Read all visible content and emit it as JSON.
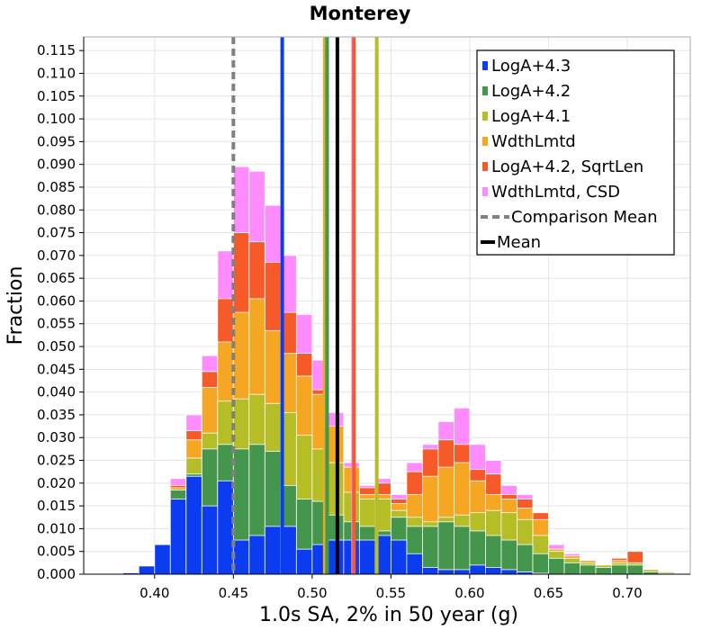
{
  "chart_data": {
    "type": "bar",
    "title": "Monterey",
    "xlabel": "1.0s SA, 2% in 50 year (g)",
    "ylabel": "Fraction",
    "xlim": [
      0.355,
      0.74
    ],
    "ylim": [
      0,
      0.118
    ],
    "bin_width": 0.01,
    "x_ticks": [
      "0.40",
      "0.45",
      "0.50",
      "0.55",
      "0.60",
      "0.65",
      "0.70"
    ],
    "x_tick_values": [
      0.4,
      0.45,
      0.5,
      0.55,
      0.6,
      0.65,
      0.7
    ],
    "y_ticks": [
      "0.000",
      "0.005",
      "0.010",
      "0.015",
      "0.020",
      "0.025",
      "0.030",
      "0.035",
      "0.040",
      "0.045",
      "0.050",
      "0.055",
      "0.060",
      "0.065",
      "0.070",
      "0.075",
      "0.080",
      "0.085",
      "0.090",
      "0.095",
      "0.100",
      "0.105",
      "0.110",
      "0.115"
    ],
    "y_tick_values": [
      0,
      0.005,
      0.01,
      0.015,
      0.02,
      0.025,
      0.03,
      0.035,
      0.04,
      0.045,
      0.05,
      0.055,
      0.06,
      0.065,
      0.07,
      0.075,
      0.08,
      0.085,
      0.09,
      0.095,
      0.1,
      0.105,
      0.11,
      0.115
    ],
    "grid": true,
    "legend_position": "top-right",
    "bin_centers": [
      0.375,
      0.385,
      0.395,
      0.405,
      0.415,
      0.425,
      0.435,
      0.445,
      0.455,
      0.465,
      0.475,
      0.485,
      0.495,
      0.505,
      0.515,
      0.525,
      0.535,
      0.545,
      0.555,
      0.565,
      0.575,
      0.585,
      0.595,
      0.605,
      0.615,
      0.625,
      0.635,
      0.645,
      0.655,
      0.665,
      0.675,
      0.685,
      0.695,
      0.705,
      0.715,
      0.725
    ],
    "series": [
      {
        "name": "WdthLmtd, CSD",
        "color": "#ff8cff",
        "values": [
          0,
          0,
          0.0005,
          0.006,
          0.021,
          0.035,
          0.048,
          0.071,
          0.0895,
          0.0885,
          0.081,
          0.07,
          0.057,
          0.047,
          0.0355,
          0.0245,
          0.0195,
          0.021,
          0.0175,
          0.0245,
          0.0285,
          0.0335,
          0.0365,
          0.0285,
          0.025,
          0.0195,
          0.0175,
          0.0135,
          0.0065,
          0.0045,
          0.003,
          0.002,
          0.0025,
          0.002,
          0.001,
          0.0005
        ]
      },
      {
        "name": "LogA+4.2, SqrtLen",
        "color": "#f55a28",
        "values": [
          0,
          0,
          0.0005,
          0.006,
          0.0195,
          0.0315,
          0.0445,
          0.0605,
          0.075,
          0.073,
          0.0685,
          0.0575,
          0.0485,
          0.0405,
          0.0295,
          0.0235,
          0.019,
          0.02,
          0.0165,
          0.0225,
          0.0275,
          0.0295,
          0.0285,
          0.023,
          0.022,
          0.0175,
          0.0165,
          0.0135,
          0.0055,
          0.004,
          0.003,
          0.002,
          0.0035,
          0.005,
          0.001,
          0.0005
        ]
      },
      {
        "name": "WdthLmtd",
        "color": "#f5a623",
        "values": [
          0,
          0,
          0.0005,
          0.006,
          0.019,
          0.0295,
          0.041,
          0.051,
          0.0575,
          0.0605,
          0.0535,
          0.0485,
          0.0435,
          0.0395,
          0.0325,
          0.0235,
          0.0175,
          0.0175,
          0.0155,
          0.0175,
          0.0215,
          0.0235,
          0.0245,
          0.0205,
          0.0175,
          0.0165,
          0.0145,
          0.012,
          0.0055,
          0.004,
          0.003,
          0.002,
          0.003,
          0.0025,
          0.001,
          0.0005
        ]
      },
      {
        "name": "LogA+4.1",
        "color": "#b5bd27",
        "values": [
          0,
          0,
          0.0005,
          0.006,
          0.018,
          0.0255,
          0.031,
          0.038,
          0.0385,
          0.0395,
          0.0375,
          0.0355,
          0.0305,
          0.0275,
          0.0245,
          0.018,
          0.0165,
          0.0165,
          0.014,
          0.0125,
          0.0115,
          0.0125,
          0.013,
          0.0135,
          0.014,
          0.0135,
          0.012,
          0.0085,
          0.005,
          0.0035,
          0.0025,
          0.002,
          0.0025,
          0.0025,
          0.001,
          0.0005
        ]
      },
      {
        "name": "LogA+4.2",
        "color": "#43964c",
        "values": [
          0,
          0,
          0.0005,
          0.006,
          0.0185,
          0.022,
          0.0275,
          0.0285,
          0.0275,
          0.0285,
          0.027,
          0.0195,
          0.0165,
          0.016,
          0.013,
          0.0115,
          0.0105,
          0.0095,
          0.0125,
          0.0105,
          0.0105,
          0.0115,
          0.0105,
          0.0095,
          0.0085,
          0.0075,
          0.0065,
          0.0045,
          0.0035,
          0.0025,
          0.002,
          0.0015,
          0.002,
          0.002,
          0.0005,
          0.0002
        ]
      },
      {
        "name": "LogA+4.3",
        "color": "#0b3cf0",
        "values": [
          0,
          0.0003,
          0.0018,
          0.0065,
          0.0165,
          0.0215,
          0.015,
          0.0205,
          0.0075,
          0.0085,
          0.0105,
          0.0105,
          0.0055,
          0.0065,
          0.0075,
          0.0075,
          0.0075,
          0.0085,
          0.0075,
          0.0045,
          0.0015,
          0.001,
          0.001,
          0.002,
          0.0015,
          0.001,
          0.0005,
          0.0002,
          0,
          0,
          0,
          0,
          0,
          0,
          0,
          0
        ]
      }
    ],
    "lines": [
      {
        "name": "Comparison Mean",
        "x": 0.45,
        "color": "#808080",
        "dashed": true,
        "legend": true
      },
      {
        "name": "Mean",
        "x": 0.516,
        "color": "#000000",
        "dashed": false,
        "legend": true
      },
      {
        "name": "LogA+4.3",
        "x": 0.481,
        "color": "#0b3cf0",
        "dashed": false,
        "legend": false
      },
      {
        "name": "WdthLmtd",
        "x": 0.508,
        "color": "#f5a623",
        "dashed": false,
        "legend": false
      },
      {
        "name": "LogA+4.1",
        "x": 0.509,
        "color": "#b5bd27",
        "dashed": false,
        "legend": false
      },
      {
        "name": "LogA+4.2",
        "x": 0.5095,
        "color": "#43964c",
        "dashed": false,
        "legend": false
      },
      {
        "name": "WdthLmtd, CSD",
        "x": 0.526,
        "color": "#ff8cff",
        "dashed": false,
        "legend": false
      },
      {
        "name": "LogA+4.2, SqrtLen",
        "x": 0.5265,
        "color": "#f55a28",
        "dashed": false,
        "legend": false
      },
      {
        "name": "LogA+4.1",
        "x": 0.541,
        "color": "#b5bd27",
        "dashed": false,
        "legend": false
      }
    ],
    "legend": [
      {
        "label": "LogA+4.3",
        "color": "#0b3cf0",
        "kind": "square"
      },
      {
        "label": "LogA+4.2",
        "color": "#43964c",
        "kind": "square"
      },
      {
        "label": "LogA+4.1",
        "color": "#b5bd27",
        "kind": "square"
      },
      {
        "label": "WdthLmtd",
        "color": "#f5a623",
        "kind": "square"
      },
      {
        "label": "LogA+4.2, SqrtLen",
        "color": "#f55a28",
        "kind": "square"
      },
      {
        "label": "WdthLmtd, CSD",
        "color": "#ff8cff",
        "kind": "square"
      },
      {
        "label": "Comparison Mean",
        "color": "#808080",
        "kind": "dashed"
      },
      {
        "label": "Mean",
        "color": "#000000",
        "kind": "line"
      }
    ]
  }
}
